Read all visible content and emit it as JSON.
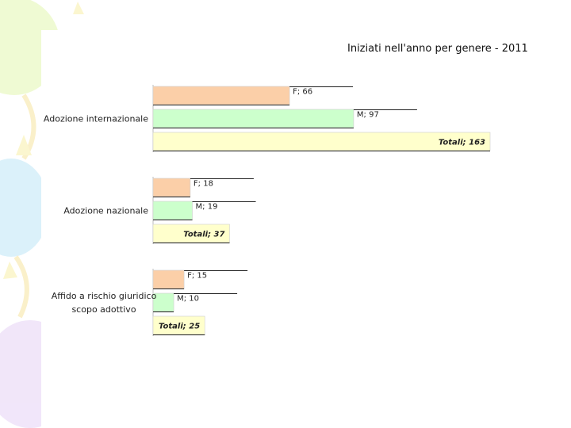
{
  "chart_data": {
    "type": "bar",
    "orientation": "horizontal",
    "title": "Iniziati nell'anno per genere - 2011",
    "categories": [
      "Adozione internazionale",
      "Adozione nazionale",
      "Affido a rischio giuridico scopo adottivo"
    ],
    "category_lines": [
      [
        "Adozione internazionale"
      ],
      [
        "Adozione nazionale"
      ],
      [
        "Affido a rischio giuridico",
        "scopo adottivo"
      ]
    ],
    "series": [
      {
        "name": "F",
        "values": [
          66,
          18,
          15
        ],
        "labels": [
          "F; 66",
          "F; 18",
          "F; 15"
        ],
        "color": "#fbcfa8"
      },
      {
        "name": "M",
        "values": [
          97,
          19,
          10
        ],
        "labels": [
          "M; 97",
          "M; 19",
          "M; 10"
        ],
        "color": "#ccffcc"
      },
      {
        "name": "Totali",
        "values": [
          163,
          37,
          25
        ],
        "labels": [
          "Totali; 163",
          "Totali; 37",
          "Totali; 25"
        ],
        "color": "#ffffcc"
      }
    ],
    "xlim": [
      0,
      163
    ],
    "grid": false,
    "legend": "none"
  }
}
